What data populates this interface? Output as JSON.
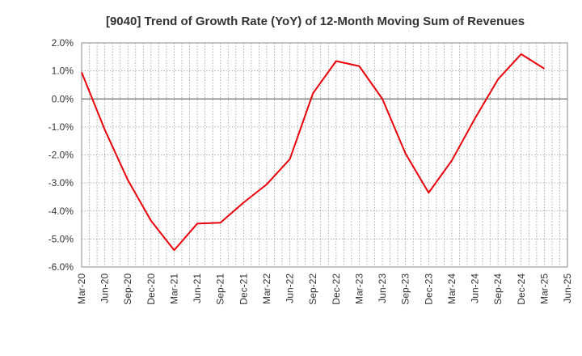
{
  "chart_data": {
    "type": "line",
    "title": "[9040]  Trend of Growth Rate (YoY) of 12-Month Moving Sum of Revenues",
    "xlabel": "",
    "ylabel": "",
    "ylim": [
      -6.0,
      2.0
    ],
    "y_ticks": [
      "2.0%",
      "1.0%",
      "0.0%",
      "-1.0%",
      "-2.0%",
      "-3.0%",
      "-4.0%",
      "-5.0%",
      "-6.0%"
    ],
    "x_tick_labels": [
      "Mar-20",
      "Jun-20",
      "Sep-20",
      "Dec-20",
      "Mar-21",
      "Jun-21",
      "Sep-21",
      "Dec-21",
      "Mar-22",
      "Jun-22",
      "Sep-22",
      "Dec-22",
      "Mar-23",
      "Jun-23",
      "Sep-23",
      "Dec-23",
      "Mar-24",
      "Jun-24",
      "Sep-24",
      "Dec-24",
      "Mar-25",
      "Jun-25"
    ],
    "grid": true,
    "line_color": "#e8000b",
    "series": [
      {
        "values": [
          0.95,
          -1.1,
          -2.9,
          -4.35,
          -5.4,
          -4.45,
          -4.42,
          -3.7,
          -3.05,
          -2.15,
          0.2,
          1.35,
          1.17,
          0.0,
          -1.95,
          -3.35,
          -2.2,
          -0.7,
          0.7,
          1.6,
          1.08
        ]
      }
    ]
  }
}
